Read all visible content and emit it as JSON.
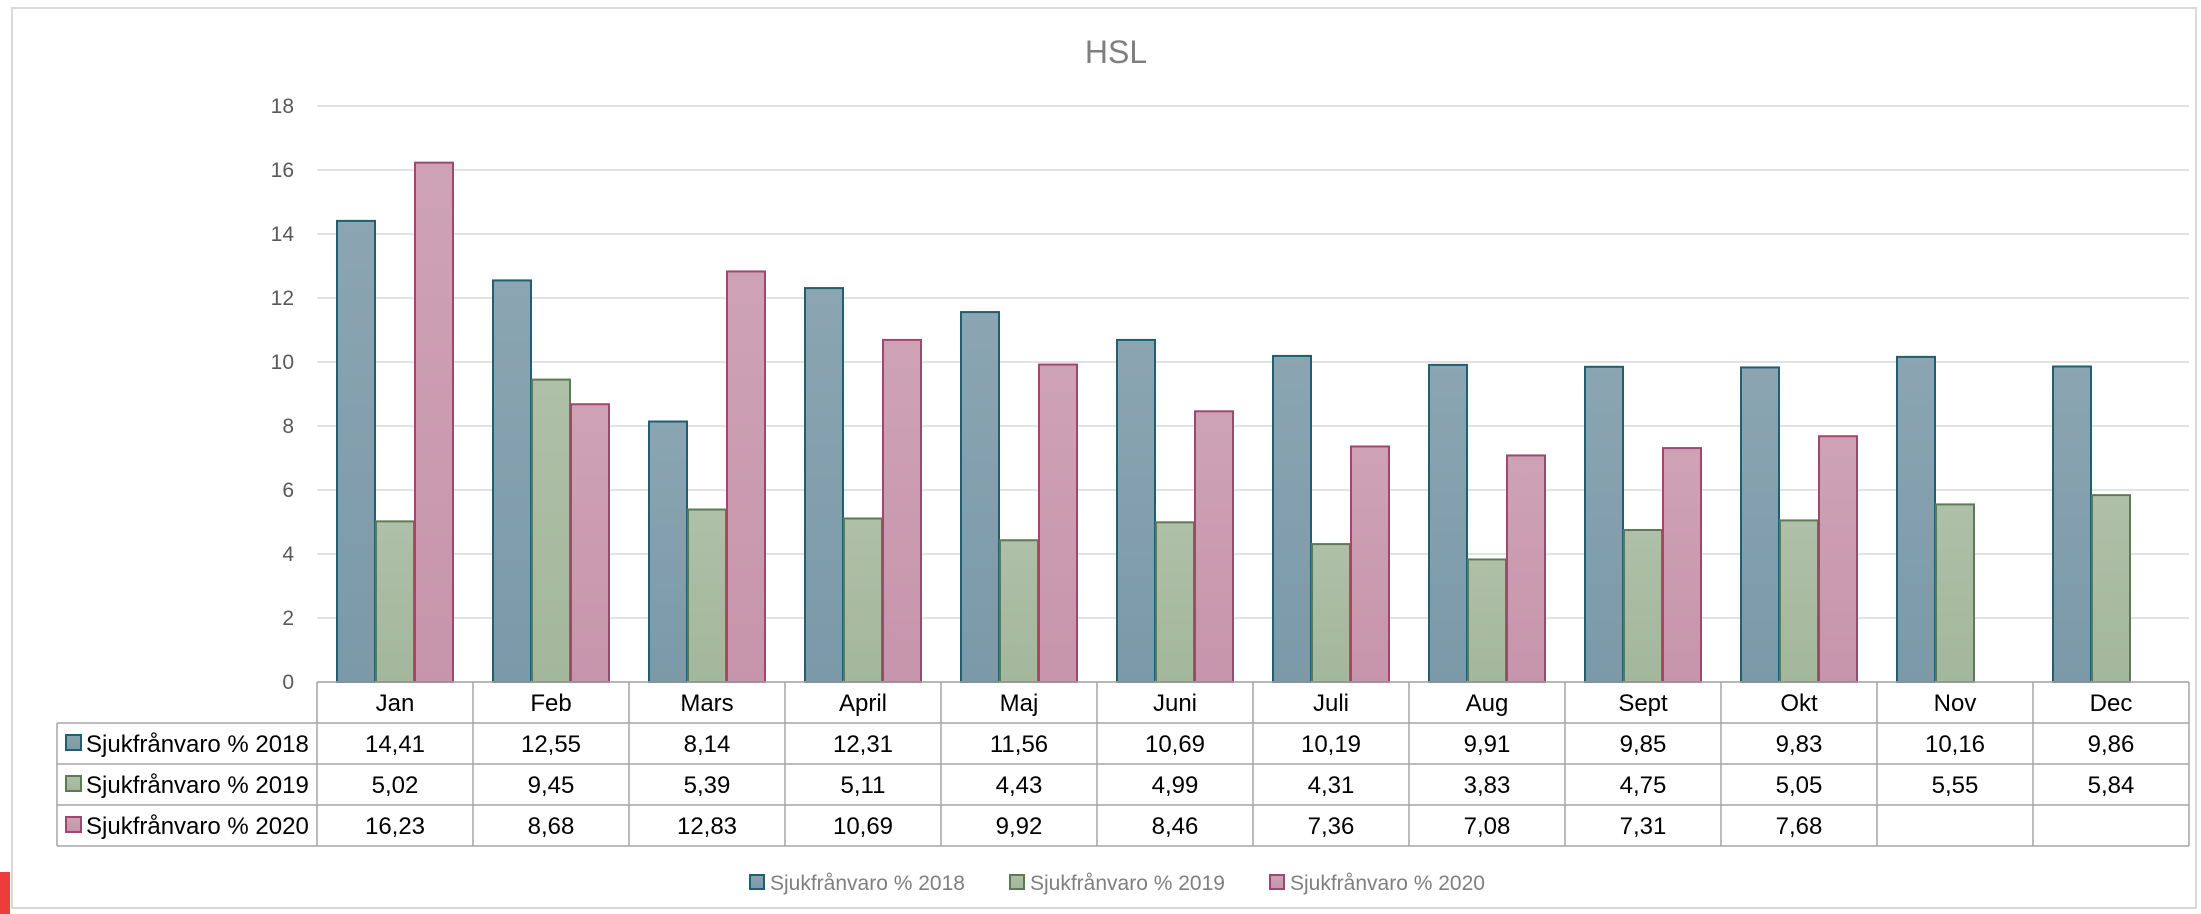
{
  "chart_data": {
    "type": "bar",
    "title": "HSL",
    "categories": [
      "Jan",
      "Feb",
      "Mars",
      "April",
      "Maj",
      "Juni",
      "Juli",
      "Aug",
      "Sept",
      "Okt",
      "Nov",
      "Dec"
    ],
    "series": [
      {
        "name": "Sjukfrånvaro % 2018",
        "values": [
          14.41,
          12.55,
          8.14,
          12.31,
          11.56,
          10.69,
          10.19,
          9.91,
          9.85,
          9.83,
          10.16,
          9.86
        ],
        "labels": [
          "14,41",
          "12,55",
          "8,14",
          "12,31",
          "11,56",
          "10,69",
          "10,19",
          "9,91",
          "9,85",
          "9,83",
          "10,16",
          "9,86"
        ],
        "color": "#7b99a8",
        "border": "#1f5f70"
      },
      {
        "name": "Sjukfrånvaro % 2019",
        "values": [
          5.02,
          9.45,
          5.39,
          5.11,
          4.43,
          4.99,
          4.31,
          3.83,
          4.75,
          5.05,
          5.55,
          5.84
        ],
        "labels": [
          "5,02",
          "9,45",
          "5,39",
          "5,11",
          "4,43",
          "4,99",
          "4,31",
          "3,83",
          "4,75",
          "5,05",
          "5,55",
          "5,84"
        ],
        "color": "#a3b79c",
        "border": "#5d7a55"
      },
      {
        "name": "Sjukfrånvaro % 2020",
        "values": [
          16.23,
          8.68,
          12.83,
          10.69,
          9.92,
          8.46,
          7.36,
          7.08,
          7.31,
          7.68,
          null,
          null
        ],
        "labels": [
          "16,23",
          "8,68",
          "12,83",
          "10,69",
          "9,92",
          "8,46",
          "7,36",
          "7,08",
          "7,31",
          "7,68",
          "",
          ""
        ],
        "color": "#c795ab",
        "border": "#a0476f"
      }
    ],
    "ylim": [
      0,
      18
    ],
    "yticks": [
      0,
      2,
      4,
      6,
      8,
      10,
      12,
      14,
      16,
      18
    ],
    "grid": true,
    "legend": "bottom",
    "data_table": true
  }
}
